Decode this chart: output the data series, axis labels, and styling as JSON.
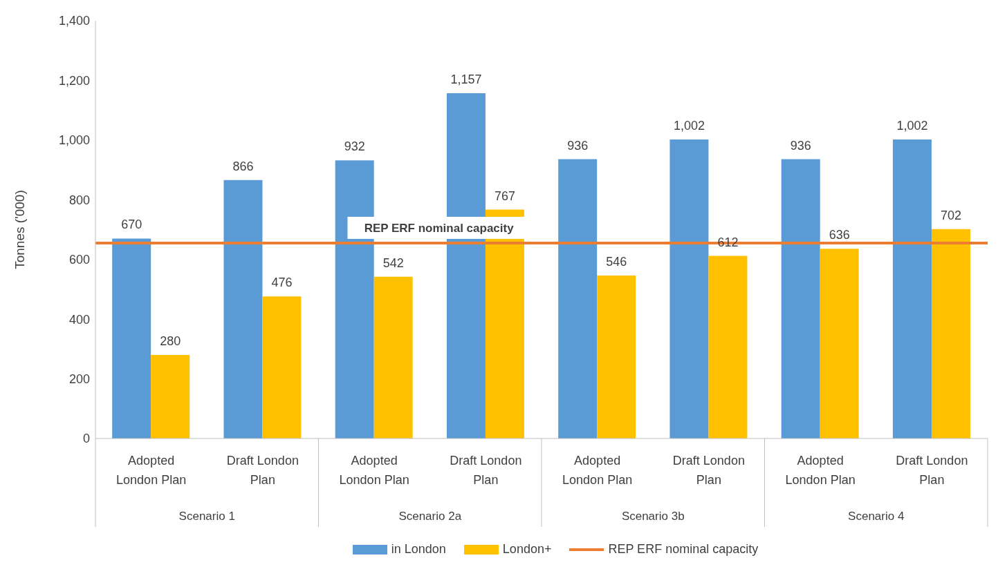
{
  "chart_data": {
    "type": "bar",
    "ylabel": "Tonnes ('000)",
    "categories": [
      "Adopted London Plan",
      "Draft London Plan",
      "Adopted London Plan",
      "Draft London Plan",
      "Adopted London Plan",
      "Draft London Plan",
      "Adopted London Plan",
      "Draft London Plan"
    ],
    "annotations": [
      "Scenario 1",
      "Scenario 2a",
      "Scenario 3b",
      "Scenario 4"
    ],
    "series": [
      {
        "name": "in London",
        "color": "#5b9bd5",
        "values": [
          670,
          866,
          932,
          1157,
          936,
          1002,
          936,
          1002
        ],
        "value_labels": [
          "670",
          "866",
          "932",
          "1,157",
          "936",
          "1,002",
          "936",
          "1,002"
        ]
      },
      {
        "name": "London+",
        "color": "#ffc000",
        "values": [
          280,
          476,
          542,
          767,
          546,
          612,
          636,
          702
        ],
        "value_labels": [
          "280",
          "476",
          "542",
          "767",
          "546",
          "612",
          "636",
          "702"
        ]
      }
    ],
    "ref_lines": [
      {
        "axis": "y",
        "value": 655,
        "label": "REP ERF nominal capacity",
        "color": "#ed7d31"
      }
    ],
    "ylim": [
      0,
      1400
    ],
    "yticks": [
      0,
      200,
      400,
      600,
      800,
      {
        "value": 1000,
        "label": "1,000"
      },
      {
        "value": 1200,
        "label": "1,200"
      },
      {
        "value": 1400,
        "label": "1,400"
      }
    ],
    "legend": "bottom"
  }
}
